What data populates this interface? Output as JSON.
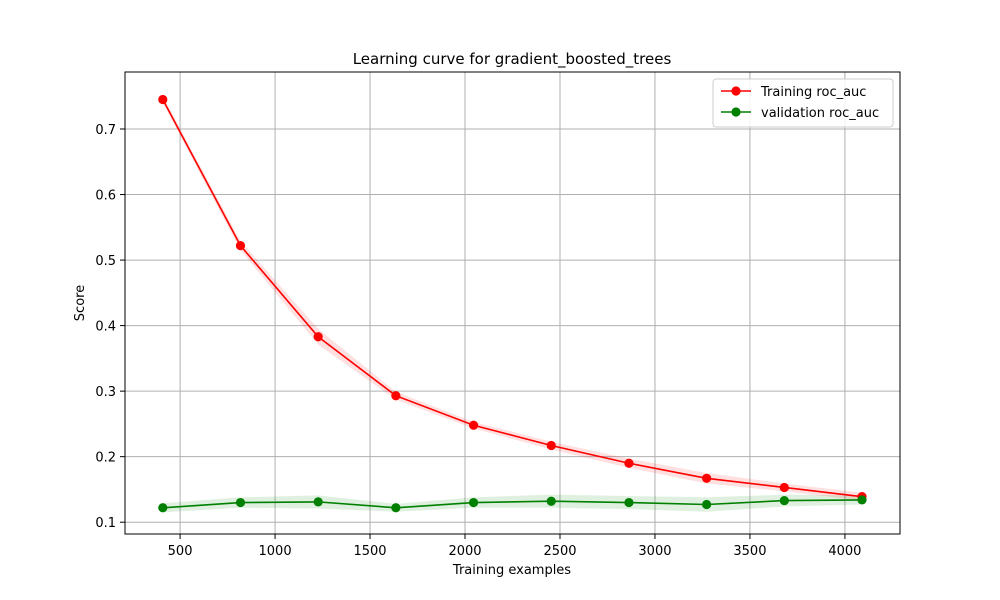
{
  "chart_data": {
    "type": "line",
    "title": "Learning curve for gradient_boosted_trees",
    "xlabel": "Training examples",
    "ylabel": "Score",
    "xlim": [
      210,
      4290
    ],
    "ylim": [
      0.082,
      0.787
    ],
    "xticks": [
      "500",
      "1000",
      "1500",
      "2000",
      "2500",
      "3000",
      "3500",
      "4000"
    ],
    "yticks": [
      "0.1",
      "0.2",
      "0.3",
      "0.4",
      "0.5",
      "0.6",
      "0.7"
    ],
    "grid": true,
    "legend_position": "top-right",
    "x": [
      409,
      818,
      1227,
      1636,
      2045,
      2454,
      2863,
      3272,
      3681,
      4090
    ],
    "series": [
      {
        "name": "Training roc_auc",
        "color": "#ff0000",
        "band_color": "#ff0000",
        "values": [
          0.745,
          0.522,
          0.383,
          0.293,
          0.248,
          0.217,
          0.19,
          0.167,
          0.153,
          0.139
        ],
        "std": [
          0.005,
          0.007,
          0.012,
          0.006,
          0.005,
          0.006,
          0.007,
          0.008,
          0.006,
          0.006
        ]
      },
      {
        "name": "validation roc_auc",
        "color": "#008000",
        "band_color": "#008000",
        "values": [
          0.122,
          0.13,
          0.131,
          0.122,
          0.13,
          0.132,
          0.13,
          0.127,
          0.133,
          0.134
        ],
        "std": [
          0.007,
          0.008,
          0.01,
          0.006,
          0.008,
          0.01,
          0.01,
          0.011,
          0.009,
          0.007
        ]
      }
    ]
  }
}
